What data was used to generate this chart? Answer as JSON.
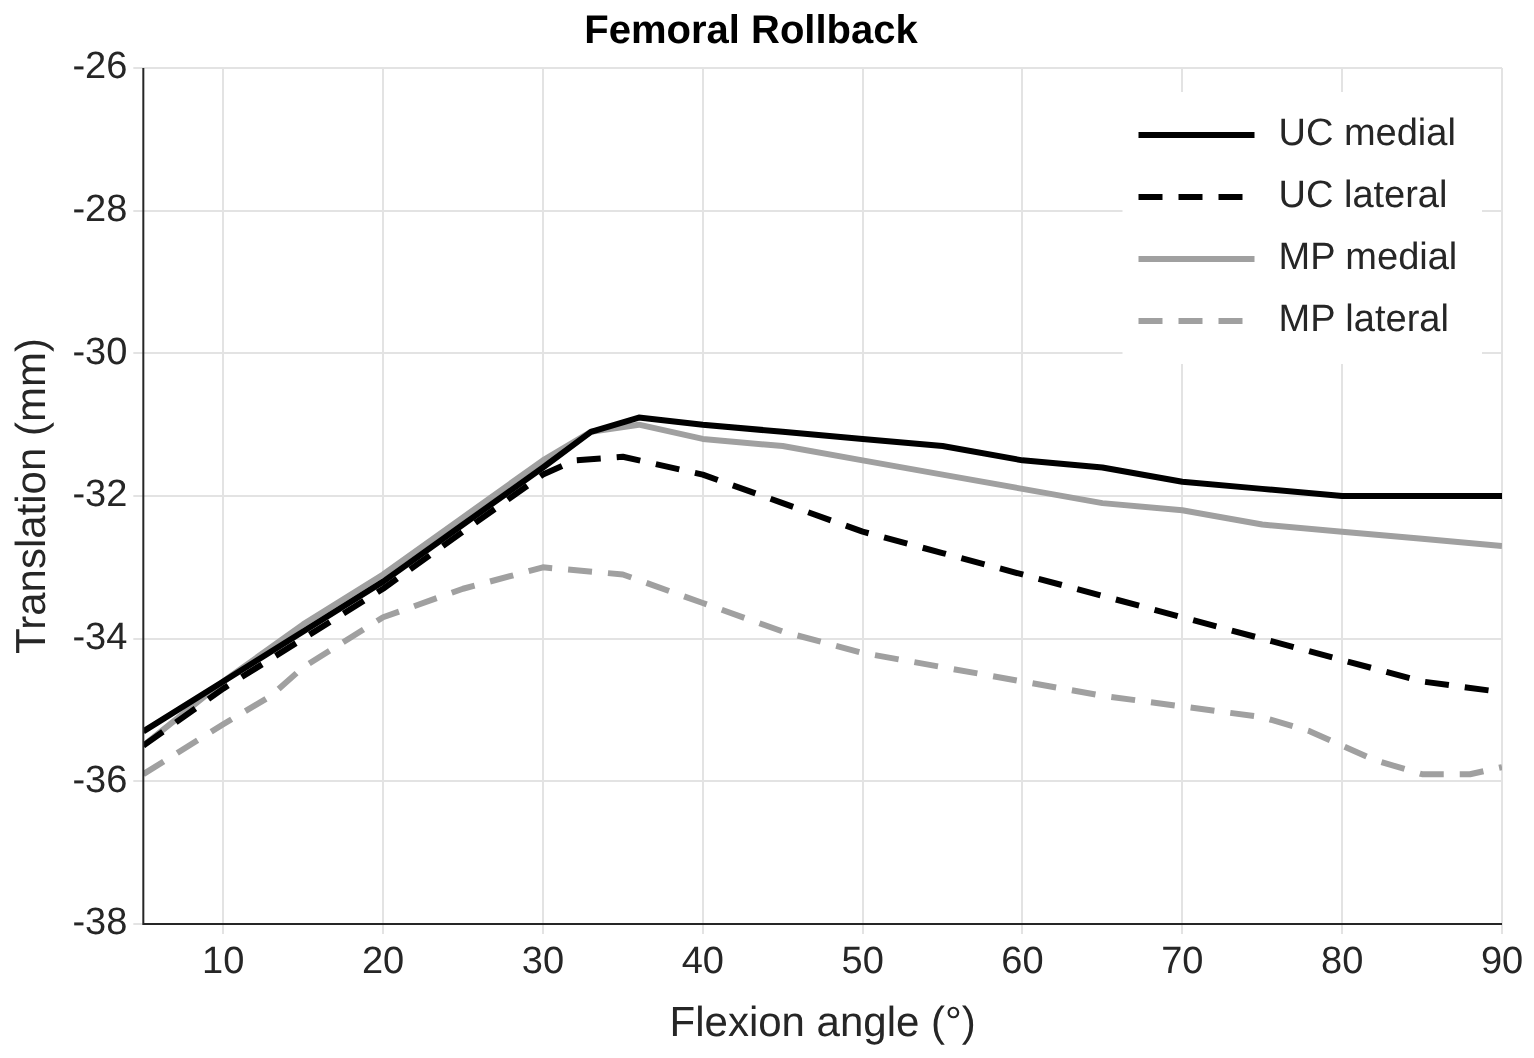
{
  "chart_data": {
    "type": "line",
    "title": "Femoral Rollback",
    "xlabel": "Flexion angle (°)",
    "ylabel": "Translation (mm)",
    "xlim": [
      5,
      90
    ],
    "xticks": [
      10,
      20,
      30,
      40,
      50,
      60,
      70,
      80,
      90
    ],
    "ylim": [
      -38,
      -26
    ],
    "yticks": [
      -38,
      -36,
      -34,
      -32,
      -30,
      -28,
      -26
    ],
    "grid": true,
    "legend": "top right",
    "marker": "none",
    "series": [
      {
        "name": "UC medial",
        "color": "#000000",
        "line_style": "solid",
        "x": [
          5,
          10,
          15,
          20,
          25,
          30,
          33,
          36,
          40,
          45,
          50,
          55,
          60,
          65,
          70,
          75,
          80,
          85,
          90
        ],
        "values": [
          -35.3,
          -34.6,
          -33.9,
          -33.2,
          -32.4,
          -31.6,
          -31.1,
          -30.9,
          -31.0,
          -31.1,
          -31.2,
          -31.3,
          -31.5,
          -31.6,
          -31.8,
          -31.9,
          -32.0,
          -32.0,
          -32.0
        ]
      },
      {
        "name": "UC lateral",
        "color": "#000000",
        "line_style": "dashed",
        "x": [
          5,
          10,
          15,
          20,
          25,
          30,
          32,
          35,
          40,
          45,
          50,
          55,
          60,
          65,
          70,
          75,
          80,
          85,
          90
        ],
        "values": [
          -35.5,
          -34.7,
          -34.0,
          -33.3,
          -32.5,
          -31.7,
          -31.5,
          -31.45,
          -31.7,
          -32.1,
          -32.5,
          -32.8,
          -33.1,
          -33.4,
          -33.7,
          -34.0,
          -34.3,
          -34.6,
          -34.75
        ]
      },
      {
        "name": "MP medial",
        "color": "#a0a0a0",
        "line_style": "solid",
        "x": [
          5,
          10,
          15,
          20,
          25,
          30,
          33,
          36,
          40,
          45,
          50,
          55,
          60,
          65,
          70,
          75,
          80,
          85,
          90
        ],
        "values": [
          -35.5,
          -34.6,
          -33.8,
          -33.1,
          -32.3,
          -31.5,
          -31.1,
          -31.0,
          -31.2,
          -31.3,
          -31.5,
          -31.7,
          -31.9,
          -32.1,
          -32.2,
          -32.4,
          -32.5,
          -32.6,
          -32.7
        ]
      },
      {
        "name": "MP lateral",
        "color": "#a0a0a0",
        "line_style": "dashed",
        "x": [
          5,
          10,
          13,
          15,
          20,
          25,
          30,
          35,
          40,
          45,
          50,
          55,
          60,
          65,
          70,
          75,
          78,
          82,
          85,
          88,
          90
        ],
        "values": [
          -35.9,
          -35.2,
          -34.8,
          -34.4,
          -33.7,
          -33.3,
          -33.0,
          -33.1,
          -33.5,
          -33.9,
          -34.2,
          -34.4,
          -34.6,
          -34.8,
          -34.95,
          -35.1,
          -35.3,
          -35.7,
          -35.9,
          -35.9,
          -35.8
        ]
      }
    ]
  }
}
